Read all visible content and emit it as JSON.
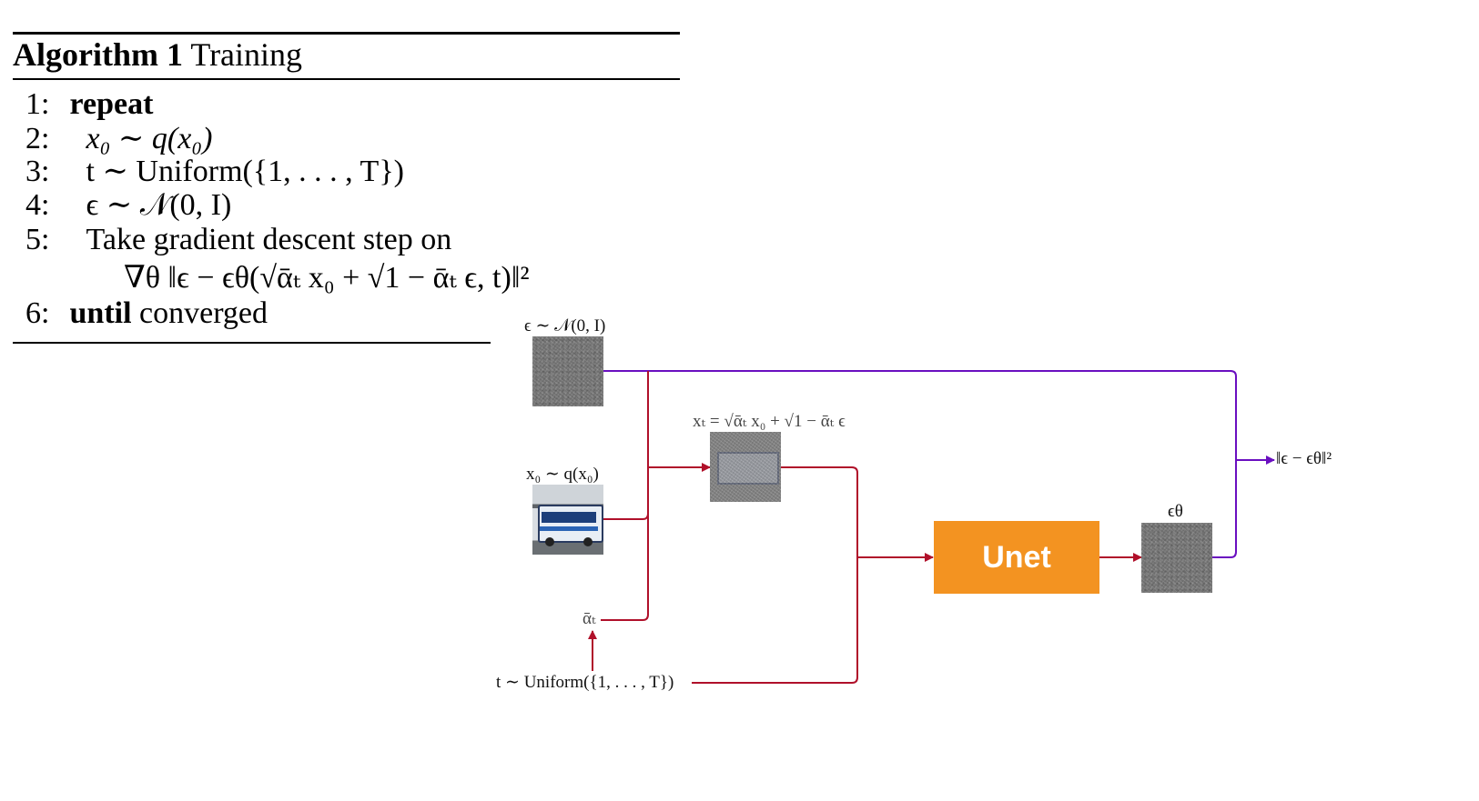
{
  "algorithm": {
    "number_label": "Algorithm 1",
    "title": "Training",
    "lines": [
      {
        "num": "1:",
        "keyword": "repeat"
      },
      {
        "num": "2:",
        "text": "x₀ ∼ q(x₀)"
      },
      {
        "num": "3:",
        "text": "t ∼ Uniform({1, . . . , T})"
      },
      {
        "num": "4:",
        "text": "ϵ ∼ 𝒩(0, I)"
      },
      {
        "num": "5:",
        "text": "Take gradient descent step on"
      },
      {
        "num": "",
        "text": "∇θ ‖ϵ − ϵθ(√ᾱₜ x₀ + √1 − ᾱₜ ϵ, t)‖²"
      },
      {
        "num": "6:",
        "keyword": "until",
        "text": "converged"
      }
    ]
  },
  "diagram": {
    "noise_label": "ϵ ∼ 𝒩(0, I)",
    "x0_label": "x₀ ∼ q(x₀)",
    "xt_label": "xₜ = √ᾱₜ x₀ + √1 − ᾱₜ ϵ",
    "alpha_label": "ᾱₜ",
    "t_label": "t ∼ Uniform({1, . . . , T})",
    "unet_label": "Unet",
    "eps_theta_label": "ϵθ",
    "loss_label": "‖ϵ − ϵθ‖²",
    "colors": {
      "red_wire": "#b0102a",
      "purple_wire": "#6a0fc0",
      "unet": "#f39321"
    }
  }
}
